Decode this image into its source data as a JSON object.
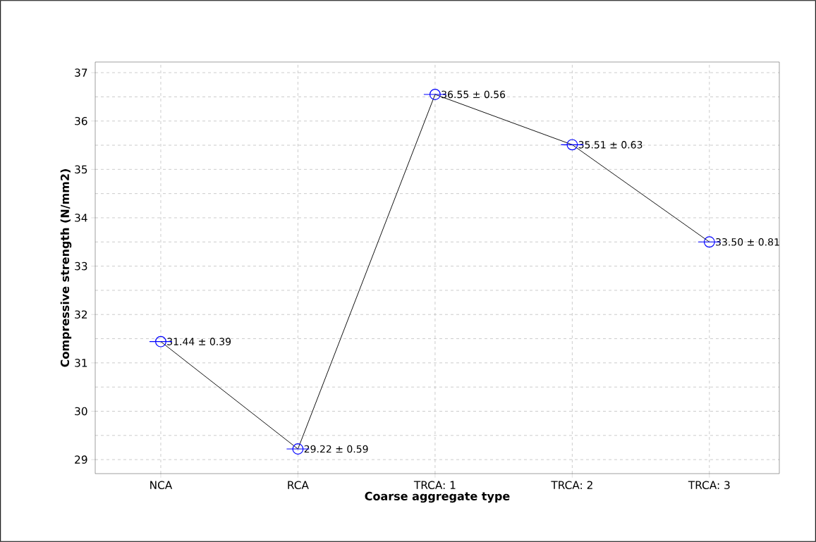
{
  "chart_data": {
    "type": "line",
    "xlabel": "Coarse aggregate type",
    "ylabel": "Compressive strength (N/mm2)",
    "categories": [
      "NCA",
      "RCA",
      "TRCA: 1",
      "TRCA: 2",
      "TRCA: 3"
    ],
    "series": [
      {
        "color": "#000000",
        "colors": [
          "#0000ff",
          "#0000ff",
          "#0000ff",
          "#0000ff",
          "#0000ff"
        ],
        "values": [
          31.44,
          29.22,
          36.55,
          35.51,
          33.5
        ],
        "value_labels": [
          "31.44 ± 0.39",
          "29.22 ± 0.59",
          "36.55 ± 0.56",
          "35.51 ± 0.63",
          "33.50 ± 0.81"
        ]
      }
    ],
    "ylim": [
      28.71,
      37.22
    ],
    "yticks": [
      29,
      30,
      31,
      32,
      33,
      34,
      35,
      36,
      37
    ],
    "grid": true,
    "marker": "circle",
    "line_style": "solid"
  }
}
